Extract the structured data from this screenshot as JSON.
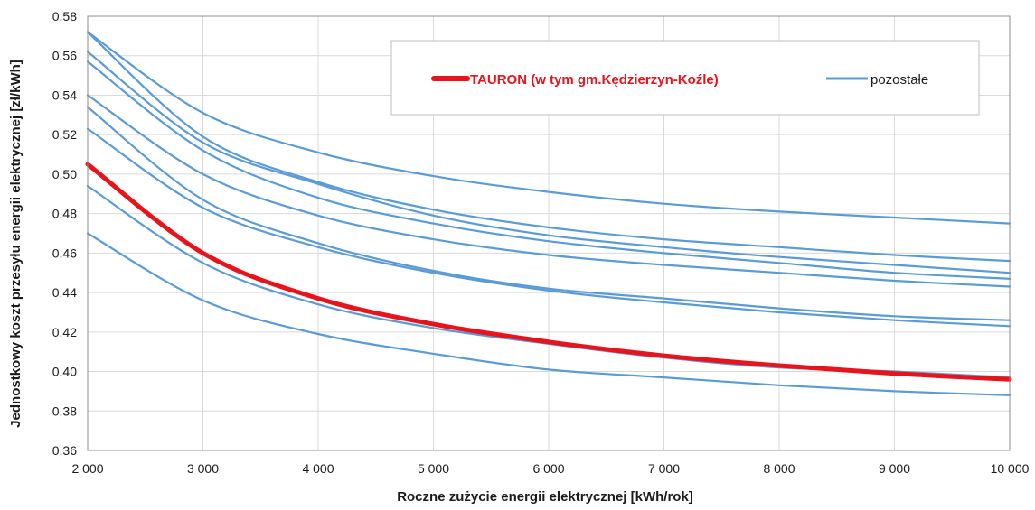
{
  "chart_data": {
    "type": "line",
    "title": "",
    "xlabel": "Roczne zużycie energii elektrycznej [kWh/rok]",
    "ylabel": "Jednostkowy koszt przesyłu energii elektrycznej [zł/kWh]",
    "xlim": [
      2000,
      10000
    ],
    "ylim": [
      0.36,
      0.58
    ],
    "grid": true,
    "legend_position": "top-right",
    "x_ticks": [
      2000,
      3000,
      4000,
      5000,
      6000,
      7000,
      8000,
      9000,
      10000
    ],
    "x_tick_labels": [
      "2 000",
      "3 000",
      "4 000",
      "5 000",
      "6 000",
      "7 000",
      "8 000",
      "9 000",
      "10 000"
    ],
    "y_ticks": [
      0.36,
      0.38,
      0.4,
      0.42,
      0.44,
      0.46,
      0.48,
      0.5,
      0.52,
      0.54,
      0.56,
      0.58
    ],
    "y_tick_labels": [
      "0,36",
      "0,38",
      "0,40",
      "0,42",
      "0,44",
      "0,46",
      "0,48",
      "0,50",
      "0,52",
      "0,54",
      "0,56",
      "0,58"
    ],
    "x": [
      2000,
      3000,
      4000,
      5000,
      6000,
      7000,
      8000,
      9000,
      10000
    ],
    "colors": {
      "highlight": "#e8141c",
      "other": "#5b9bd5"
    },
    "legend": {
      "highlight_label": "TAURON  (w tym gm.Kędzierzyn-Koźle)",
      "other_label": "pozostałe"
    },
    "series": [
      {
        "group": "highlight",
        "values": [
          0.505,
          0.46,
          0.437,
          0.424,
          0.415,
          0.408,
          0.403,
          0.399,
          0.396
        ]
      },
      {
        "group": "other",
        "values": [
          0.572,
          0.531,
          0.511,
          0.499,
          0.491,
          0.485,
          0.481,
          0.478,
          0.475
        ]
      },
      {
        "group": "other",
        "values": [
          0.572,
          0.519,
          0.496,
          0.482,
          0.473,
          0.467,
          0.463,
          0.459,
          0.456
        ]
      },
      {
        "group": "other",
        "values": [
          0.562,
          0.516,
          0.495,
          0.479,
          0.469,
          0.463,
          0.458,
          0.454,
          0.45
        ]
      },
      {
        "group": "other",
        "values": [
          0.557,
          0.512,
          0.488,
          0.475,
          0.466,
          0.46,
          0.455,
          0.45,
          0.447
        ]
      },
      {
        "group": "other",
        "values": [
          0.54,
          0.5,
          0.479,
          0.467,
          0.459,
          0.454,
          0.45,
          0.446,
          0.443
        ]
      },
      {
        "group": "other",
        "values": [
          0.534,
          0.487,
          0.465,
          0.451,
          0.442,
          0.437,
          0.432,
          0.428,
          0.426
        ]
      },
      {
        "group": "other",
        "values": [
          0.523,
          0.483,
          0.463,
          0.45,
          0.441,
          0.435,
          0.43,
          0.426,
          0.423
        ]
      },
      {
        "group": "other",
        "values": [
          0.494,
          0.455,
          0.434,
          0.422,
          0.414,
          0.407,
          0.402,
          0.4,
          0.397
        ]
      },
      {
        "group": "other",
        "values": [
          0.47,
          0.436,
          0.419,
          0.409,
          0.401,
          0.397,
          0.393,
          0.39,
          0.388
        ]
      }
    ]
  }
}
